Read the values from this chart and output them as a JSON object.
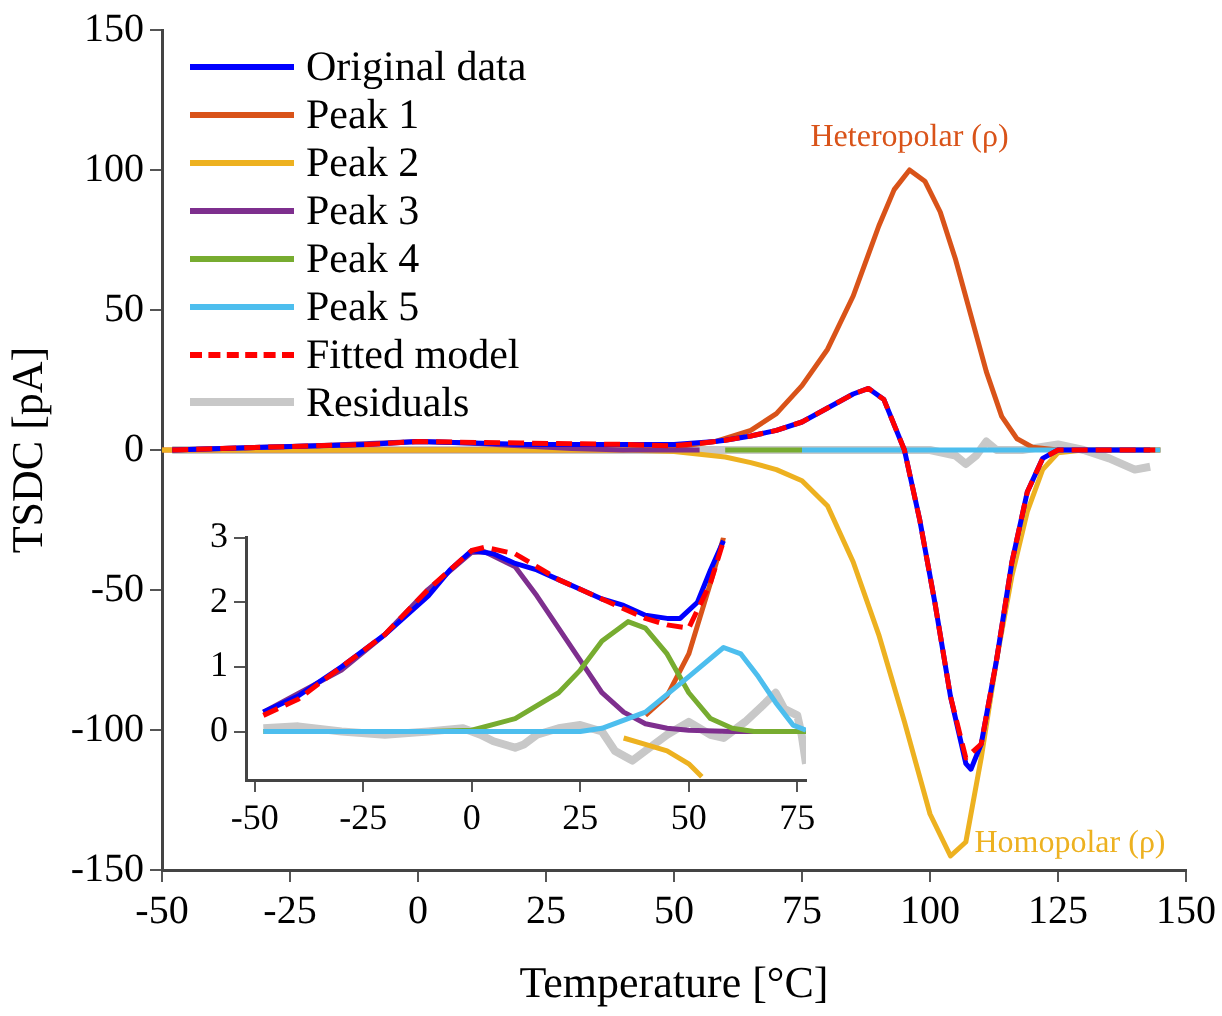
{
  "chart_data": [
    {
      "type": "line",
      "xlabel": "Temperature [°C]",
      "ylabel": "TSDC [pA]",
      "xlim": [
        -50,
        150
      ],
      "ylim": [
        -150,
        150
      ],
      "xticks": [
        -50,
        -25,
        0,
        25,
        50,
        75,
        100,
        125,
        150
      ],
      "yticks": [
        -150,
        -100,
        -50,
        0,
        50,
        100,
        150
      ],
      "grid": false,
      "legend": "top left",
      "line_style": "solid",
      "marker": "none",
      "annotations": [
        {
          "text": "Heteropolar (ρ)",
          "x": 96,
          "y": 100
        },
        {
          "text": "Homopolar (ρ)",
          "x": 104,
          "y": -145
        }
      ],
      "series": [
        {
          "name": "Original data",
          "color": "#0000ff",
          "x": [
            -48,
            -30,
            -10,
            0,
            20,
            40,
            50,
            58,
            60,
            65,
            70,
            75,
            80,
            85,
            88,
            91,
            95,
            98,
            101,
            104,
            107,
            108,
            110,
            113,
            116,
            119,
            122,
            125,
            130,
            143
          ],
          "values": [
            0,
            1,
            2,
            3,
            2,
            2,
            2,
            3,
            3.5,
            5,
            7,
            10,
            15,
            20,
            22,
            18,
            0,
            -25,
            -55,
            -88,
            -112,
            -114,
            -105,
            -75,
            -40,
            -15,
            -3,
            0,
            0,
            0
          ]
        },
        {
          "name": "Peak 1",
          "color": "#d95319",
          "x": [
            -50,
            40,
            50,
            58,
            65,
            70,
            75,
            80,
            85,
            90,
            93,
            96,
            99,
            102,
            105,
            108,
            111,
            114,
            117,
            120,
            125,
            145
          ],
          "values": [
            0,
            0,
            1,
            3,
            7,
            13,
            23,
            36,
            55,
            80,
            93,
            100,
            96,
            85,
            68,
            48,
            28,
            12,
            4,
            1,
            0,
            0
          ]
        },
        {
          "name": "Peak 2",
          "color": "#edb120",
          "x": [
            -50,
            40,
            50,
            60,
            65,
            70,
            75,
            80,
            85,
            90,
            95,
            100,
            104,
            107,
            110,
            113,
            116,
            119,
            122,
            125,
            130,
            145
          ],
          "values": [
            0,
            0,
            -0.5,
            -2.5,
            -4.5,
            -7,
            -11,
            -20,
            -40,
            -66,
            -97,
            -130,
            -145,
            -140,
            -110,
            -75,
            -45,
            -22,
            -7,
            -1,
            0,
            0
          ]
        },
        {
          "name": "Peak 3",
          "color": "#7e2f8e",
          "x": [
            -48,
            -20,
            0,
            10,
            20,
            30,
            40,
            55
          ],
          "values": [
            0,
            1.5,
            3,
            2.5,
            1.5,
            0.5,
            0,
            0
          ]
        },
        {
          "name": "Peak 4",
          "color": "#77ac30",
          "x": [
            60,
            75
          ],
          "values": [
            0,
            0
          ]
        },
        {
          "name": "Peak 5",
          "color": "#4dbeee",
          "x": [
            75,
            145
          ],
          "values": [
            0,
            0
          ]
        },
        {
          "name": "Fitted model",
          "color": "#ff0000",
          "line_style": "dashed",
          "x": [
            -48,
            -30,
            -10,
            0,
            20,
            40,
            50,
            58,
            60,
            65,
            70,
            75,
            80,
            85,
            88,
            91,
            95,
            98,
            101,
            104,
            107,
            110,
            113,
            116,
            119,
            122,
            125,
            130,
            144
          ],
          "values": [
            0,
            1,
            2,
            3,
            2.5,
            2,
            1.5,
            3,
            3.5,
            5,
            7,
            10,
            15,
            20,
            22,
            18,
            0,
            -25,
            -55,
            -88,
            -110,
            -105,
            -75,
            -40,
            -15,
            -3,
            0,
            0,
            0
          ]
        },
        {
          "name": "Residuals",
          "color": "#c8c8c8",
          "x": [
            -48,
            100,
            105,
            107,
            109,
            111,
            113,
            118,
            125,
            130,
            135,
            140,
            143
          ],
          "values": [
            0,
            0,
            -2,
            -5,
            -2,
            3,
            0,
            0,
            2,
            0,
            -3,
            -7,
            -6
          ]
        }
      ]
    },
    {
      "type": "line",
      "xlim": [
        -52,
        77
      ],
      "ylim": [
        -0.75,
        3
      ],
      "xticks": [
        -50,
        -25,
        0,
        25,
        50,
        75
      ],
      "yticks": [
        0,
        1,
        2,
        3
      ],
      "grid": false,
      "line_style": "solid",
      "marker": "none",
      "series": [
        {
          "color": "#0000ff",
          "x": [
            -48,
            -40,
            -30,
            -20,
            -10,
            -5,
            0,
            5,
            10,
            15,
            20,
            25,
            30,
            35,
            40,
            45,
            48,
            52,
            55,
            58
          ],
          "values": [
            0.3,
            0.55,
            1.0,
            1.5,
            2.1,
            2.5,
            2.8,
            2.75,
            2.6,
            2.5,
            2.35,
            2.2,
            2.05,
            1.95,
            1.8,
            1.75,
            1.75,
            2.0,
            2.5,
            2.95
          ]
        },
        {
          "color": "#d95319",
          "x": [
            40,
            45,
            50,
            55,
            58
          ],
          "values": [
            0.25,
            0.55,
            1.2,
            2.3,
            3
          ]
        },
        {
          "color": "#edb120",
          "x": [
            35,
            40,
            45,
            50,
            53
          ],
          "values": [
            -0.1,
            -0.2,
            -0.3,
            -0.5,
            -0.7
          ]
        },
        {
          "color": "#7e2f8e",
          "x": [
            -48,
            -30,
            -20,
            -10,
            0,
            3,
            10,
            15,
            20,
            25,
            30,
            35,
            40,
            45,
            50,
            60,
            77
          ],
          "values": [
            0.3,
            0.95,
            1.5,
            2.2,
            2.77,
            2.78,
            2.55,
            2.1,
            1.6,
            1.1,
            0.6,
            0.3,
            0.12,
            0.05,
            0.02,
            0,
            0
          ]
        },
        {
          "color": "#77ac30",
          "x": [
            -48,
            -10,
            0,
            10,
            20,
            25,
            30,
            36,
            40,
            45,
            50,
            55,
            60,
            65,
            77
          ],
          "values": [
            0,
            0,
            0.02,
            0.2,
            0.6,
            0.95,
            1.4,
            1.7,
            1.6,
            1.2,
            0.6,
            0.2,
            0.05,
            0,
            0
          ]
        },
        {
          "color": "#4dbeee",
          "x": [
            -48,
            25,
            30,
            40,
            50,
            58,
            62,
            66,
            70,
            74,
            77
          ],
          "values": [
            0,
            0,
            0.05,
            0.3,
            0.85,
            1.3,
            1.2,
            0.85,
            0.45,
            0.1,
            0.02
          ]
        },
        {
          "color": "#ff0000",
          "line_style": "dashed",
          "x": [
            -48,
            -40,
            -30,
            -20,
            -10,
            0,
            3,
            10,
            15,
            20,
            25,
            30,
            35,
            40,
            45,
            50,
            55,
            58
          ],
          "values": [
            0.25,
            0.5,
            1.0,
            1.5,
            2.2,
            2.8,
            2.85,
            2.75,
            2.55,
            2.35,
            2.2,
            2.05,
            1.9,
            1.75,
            1.65,
            1.6,
            2.3,
            2.95
          ]
        },
        {
          "color": "#c8c8c8",
          "x": [
            -48,
            -40,
            -30,
            -20,
            -10,
            -2,
            2,
            5,
            10,
            12,
            15,
            20,
            25,
            30,
            33,
            37,
            40,
            45,
            50,
            55,
            58,
            63,
            67,
            70,
            72,
            75,
            76,
            77
          ],
          "values": [
            0.05,
            0.08,
            0,
            -0.05,
            0,
            0.05,
            -0.05,
            -0.15,
            -0.25,
            -0.2,
            -0.05,
            0.05,
            0.1,
            0,
            -0.3,
            -0.45,
            -0.3,
            -0.05,
            0.15,
            -0.05,
            -0.1,
            0.15,
            0.4,
            0.6,
            0.35,
            0.25,
            -0.05,
            -0.5
          ]
        }
      ]
    }
  ]
}
